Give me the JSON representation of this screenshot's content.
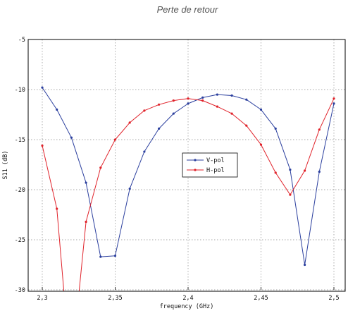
{
  "chart_data": {
    "type": "line",
    "title": "Perte de retour",
    "xlabel": "frequency (GHz)",
    "ylabel": "S11 (dB)",
    "xlim": [
      2.3,
      2.5
    ],
    "ylim": [
      -30,
      -5
    ],
    "x_ticks": [
      2.3,
      2.35,
      2.4,
      2.45,
      2.5
    ],
    "x_tick_labels": [
      "2,3",
      "2,35",
      "2,4",
      "2,45",
      "2,5"
    ],
    "y_ticks": [
      -30,
      -25,
      -20,
      -15,
      -10,
      -5
    ],
    "y_tick_labels": [
      "-30",
      "-25",
      "-20",
      "-15",
      "-10",
      "-5"
    ],
    "grid": true,
    "legend_position": "center",
    "series": [
      {
        "name": "V-pol",
        "color": "#2b3f9e",
        "marker": "dot",
        "x": [
          2.3,
          2.31,
          2.32,
          2.33,
          2.34,
          2.35,
          2.36,
          2.37,
          2.38,
          2.39,
          2.4,
          2.41,
          2.42,
          2.43,
          2.44,
          2.45,
          2.46,
          2.47,
          2.48,
          2.49,
          2.5
        ],
        "y": [
          -9.8,
          -12.0,
          -14.8,
          -19.3,
          -26.7,
          -26.6,
          -19.9,
          -16.2,
          -13.9,
          -12.4,
          -11.4,
          -10.8,
          -10.5,
          -10.6,
          -11.0,
          -12.0,
          -13.9,
          -18.0,
          -27.5,
          -18.2,
          -11.4
        ]
      },
      {
        "name": "H-pol",
        "color": "#e0222a",
        "marker": "dot",
        "x": [
          2.3,
          2.31,
          2.315,
          2.32,
          2.325,
          2.33,
          2.34,
          2.35,
          2.36,
          2.37,
          2.38,
          2.39,
          2.4,
          2.41,
          2.42,
          2.43,
          2.44,
          2.45,
          2.46,
          2.47,
          2.48,
          2.49,
          2.5
        ],
        "y": [
          -15.6,
          -21.9,
          -30.5,
          -33.0,
          -30.5,
          -23.2,
          -17.8,
          -15.0,
          -13.3,
          -12.1,
          -11.5,
          -11.1,
          -10.9,
          -11.1,
          -11.7,
          -12.4,
          -13.6,
          -15.5,
          -18.3,
          -20.5,
          -18.1,
          -14.0,
          -10.9
        ]
      }
    ]
  }
}
